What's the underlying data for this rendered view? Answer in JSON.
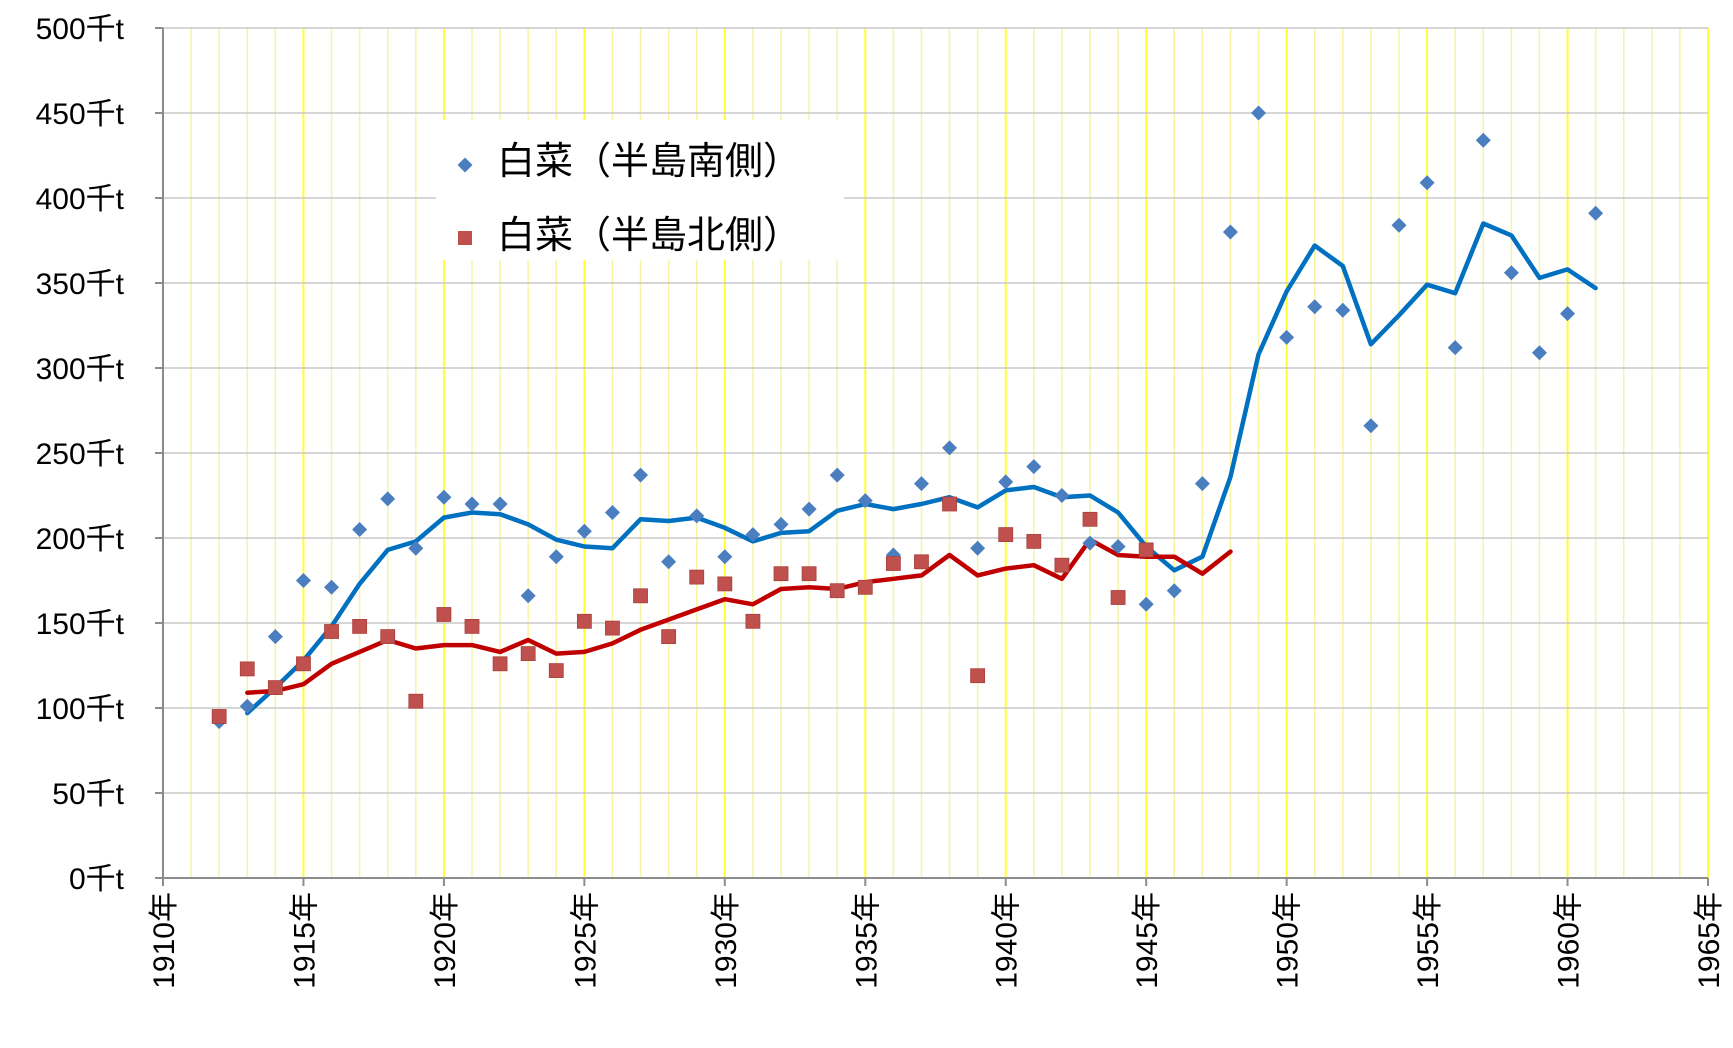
{
  "chart_data": {
    "type": "scatter",
    "title": "",
    "xlabel": "",
    "ylabel": "",
    "xlim": [
      1910,
      1965
    ],
    "ylim": [
      0,
      500
    ],
    "x_major_step": 5,
    "y_major_step": 50,
    "x_tick_labels": [
      "1910年",
      "1915年",
      "1920年",
      "1925年",
      "1930年",
      "1935年",
      "1940年",
      "1945年",
      "1950年",
      "1955年",
      "1960年",
      "1965年"
    ],
    "y_tick_labels": [
      "0千t",
      "50千t",
      "100千t",
      "150千t",
      "200千t",
      "250千t",
      "300千t",
      "350千t",
      "400千t",
      "450千t",
      "500千t"
    ],
    "grid": {
      "horizontal": true,
      "vertical_minor": true,
      "vertical_major": true
    },
    "legend_position": "upper-left-inside",
    "series": [
      {
        "name": "白菜（半島南側）",
        "marker": "diamond",
        "color": "#4a7ebf",
        "x": [
          1912,
          1913,
          1914,
          1915,
          1916,
          1917,
          1918,
          1919,
          1920,
          1921,
          1922,
          1923,
          1924,
          1925,
          1926,
          1927,
          1928,
          1929,
          1930,
          1931,
          1932,
          1933,
          1934,
          1935,
          1936,
          1937,
          1938,
          1939,
          1940,
          1941,
          1942,
          1943,
          1944,
          1945,
          1946,
          1947,
          1948,
          1949,
          1950,
          1951,
          1952,
          1953,
          1954,
          1955,
          1956,
          1957,
          1958,
          1959,
          1960,
          1961
        ],
        "y": [
          92,
          101,
          142,
          175,
          171,
          205,
          223,
          194,
          224,
          220,
          220,
          166,
          189,
          204,
          215,
          237,
          186,
          213,
          189,
          202,
          208,
          217,
          237,
          222,
          190,
          232,
          253,
          194,
          233,
          242,
          225,
          197,
          195,
          161,
          169,
          232,
          380,
          450,
          318,
          336,
          334,
          266,
          384,
          409,
          312,
          434,
          356,
          309,
          332,
          391
        ]
      },
      {
        "name": "白菜（半島北側）",
        "marker": "square",
        "color": "#c0504d",
        "x": [
          1912,
          1913,
          1914,
          1915,
          1916,
          1917,
          1918,
          1919,
          1920,
          1921,
          1922,
          1923,
          1924,
          1925,
          1926,
          1927,
          1928,
          1929,
          1930,
          1931,
          1932,
          1933,
          1934,
          1935,
          1936,
          1937,
          1938,
          1939,
          1940,
          1941,
          1942,
          1943,
          1944,
          1945
        ],
        "y": [
          95,
          123,
          112,
          126,
          145,
          148,
          142,
          104,
          155,
          148,
          126,
          132,
          122,
          151,
          147,
          166,
          142,
          177,
          173,
          151,
          179,
          179,
          169,
          171,
          185,
          186,
          220,
          119,
          202,
          198,
          184,
          211,
          165,
          193
        ]
      }
    ],
    "trend_lines": [
      {
        "color": "#0070c0",
        "x": [
          1913,
          1914,
          1915,
          1916,
          1917,
          1918,
          1919,
          1920,
          1921,
          1922,
          1923,
          1924,
          1925,
          1926,
          1927,
          1928,
          1929,
          1930,
          1931,
          1932,
          1933,
          1934,
          1935,
          1936,
          1937,
          1938,
          1939,
          1940,
          1941,
          1942,
          1943,
          1944,
          1945,
          1946,
          1947,
          1948,
          1949,
          1950,
          1951,
          1952,
          1953,
          1954,
          1955,
          1956,
          1957,
          1958,
          1959,
          1960,
          1961
        ],
        "y": [
          97,
          112,
          128,
          148,
          173,
          193,
          198,
          212,
          215,
          214,
          208,
          199,
          195,
          194,
          211,
          210,
          212,
          206,
          198,
          203,
          204,
          216,
          220,
          217,
          220,
          224,
          218,
          228,
          230,
          224,
          225,
          215,
          195,
          181,
          189,
          236,
          308,
          345,
          372,
          360,
          314,
          331,
          349,
          344,
          385,
          378,
          353,
          358,
          347
        ]
      },
      {
        "color": "#c00000",
        "x": [
          1913,
          1914,
          1915,
          1916,
          1917,
          1918,
          1919,
          1920,
          1921,
          1922,
          1923,
          1924,
          1925,
          1926,
          1927,
          1928,
          1929,
          1930,
          1931,
          1932,
          1933,
          1934,
          1935,
          1936,
          1937,
          1938,
          1939,
          1940,
          1941,
          1942,
          1943,
          1944,
          1945,
          1946,
          1947,
          1948
        ],
        "y": [
          109,
          110,
          114,
          126,
          133,
          140,
          135,
          137,
          137,
          133,
          140,
          132,
          133,
          138,
          146,
          152,
          158,
          164,
          161,
          170,
          171,
          170,
          174,
          176,
          178,
          190,
          178,
          182,
          184,
          176,
          199,
          190,
          189,
          189,
          179,
          192
        ]
      }
    ]
  },
  "colors": {
    "grid_horizontal": "#c8c8c8",
    "grid_minor_vertical": "#f7f3a4",
    "grid_major_vertical": "#ffff33",
    "axis": "#8c8c8c",
    "background": "#ffffff"
  }
}
